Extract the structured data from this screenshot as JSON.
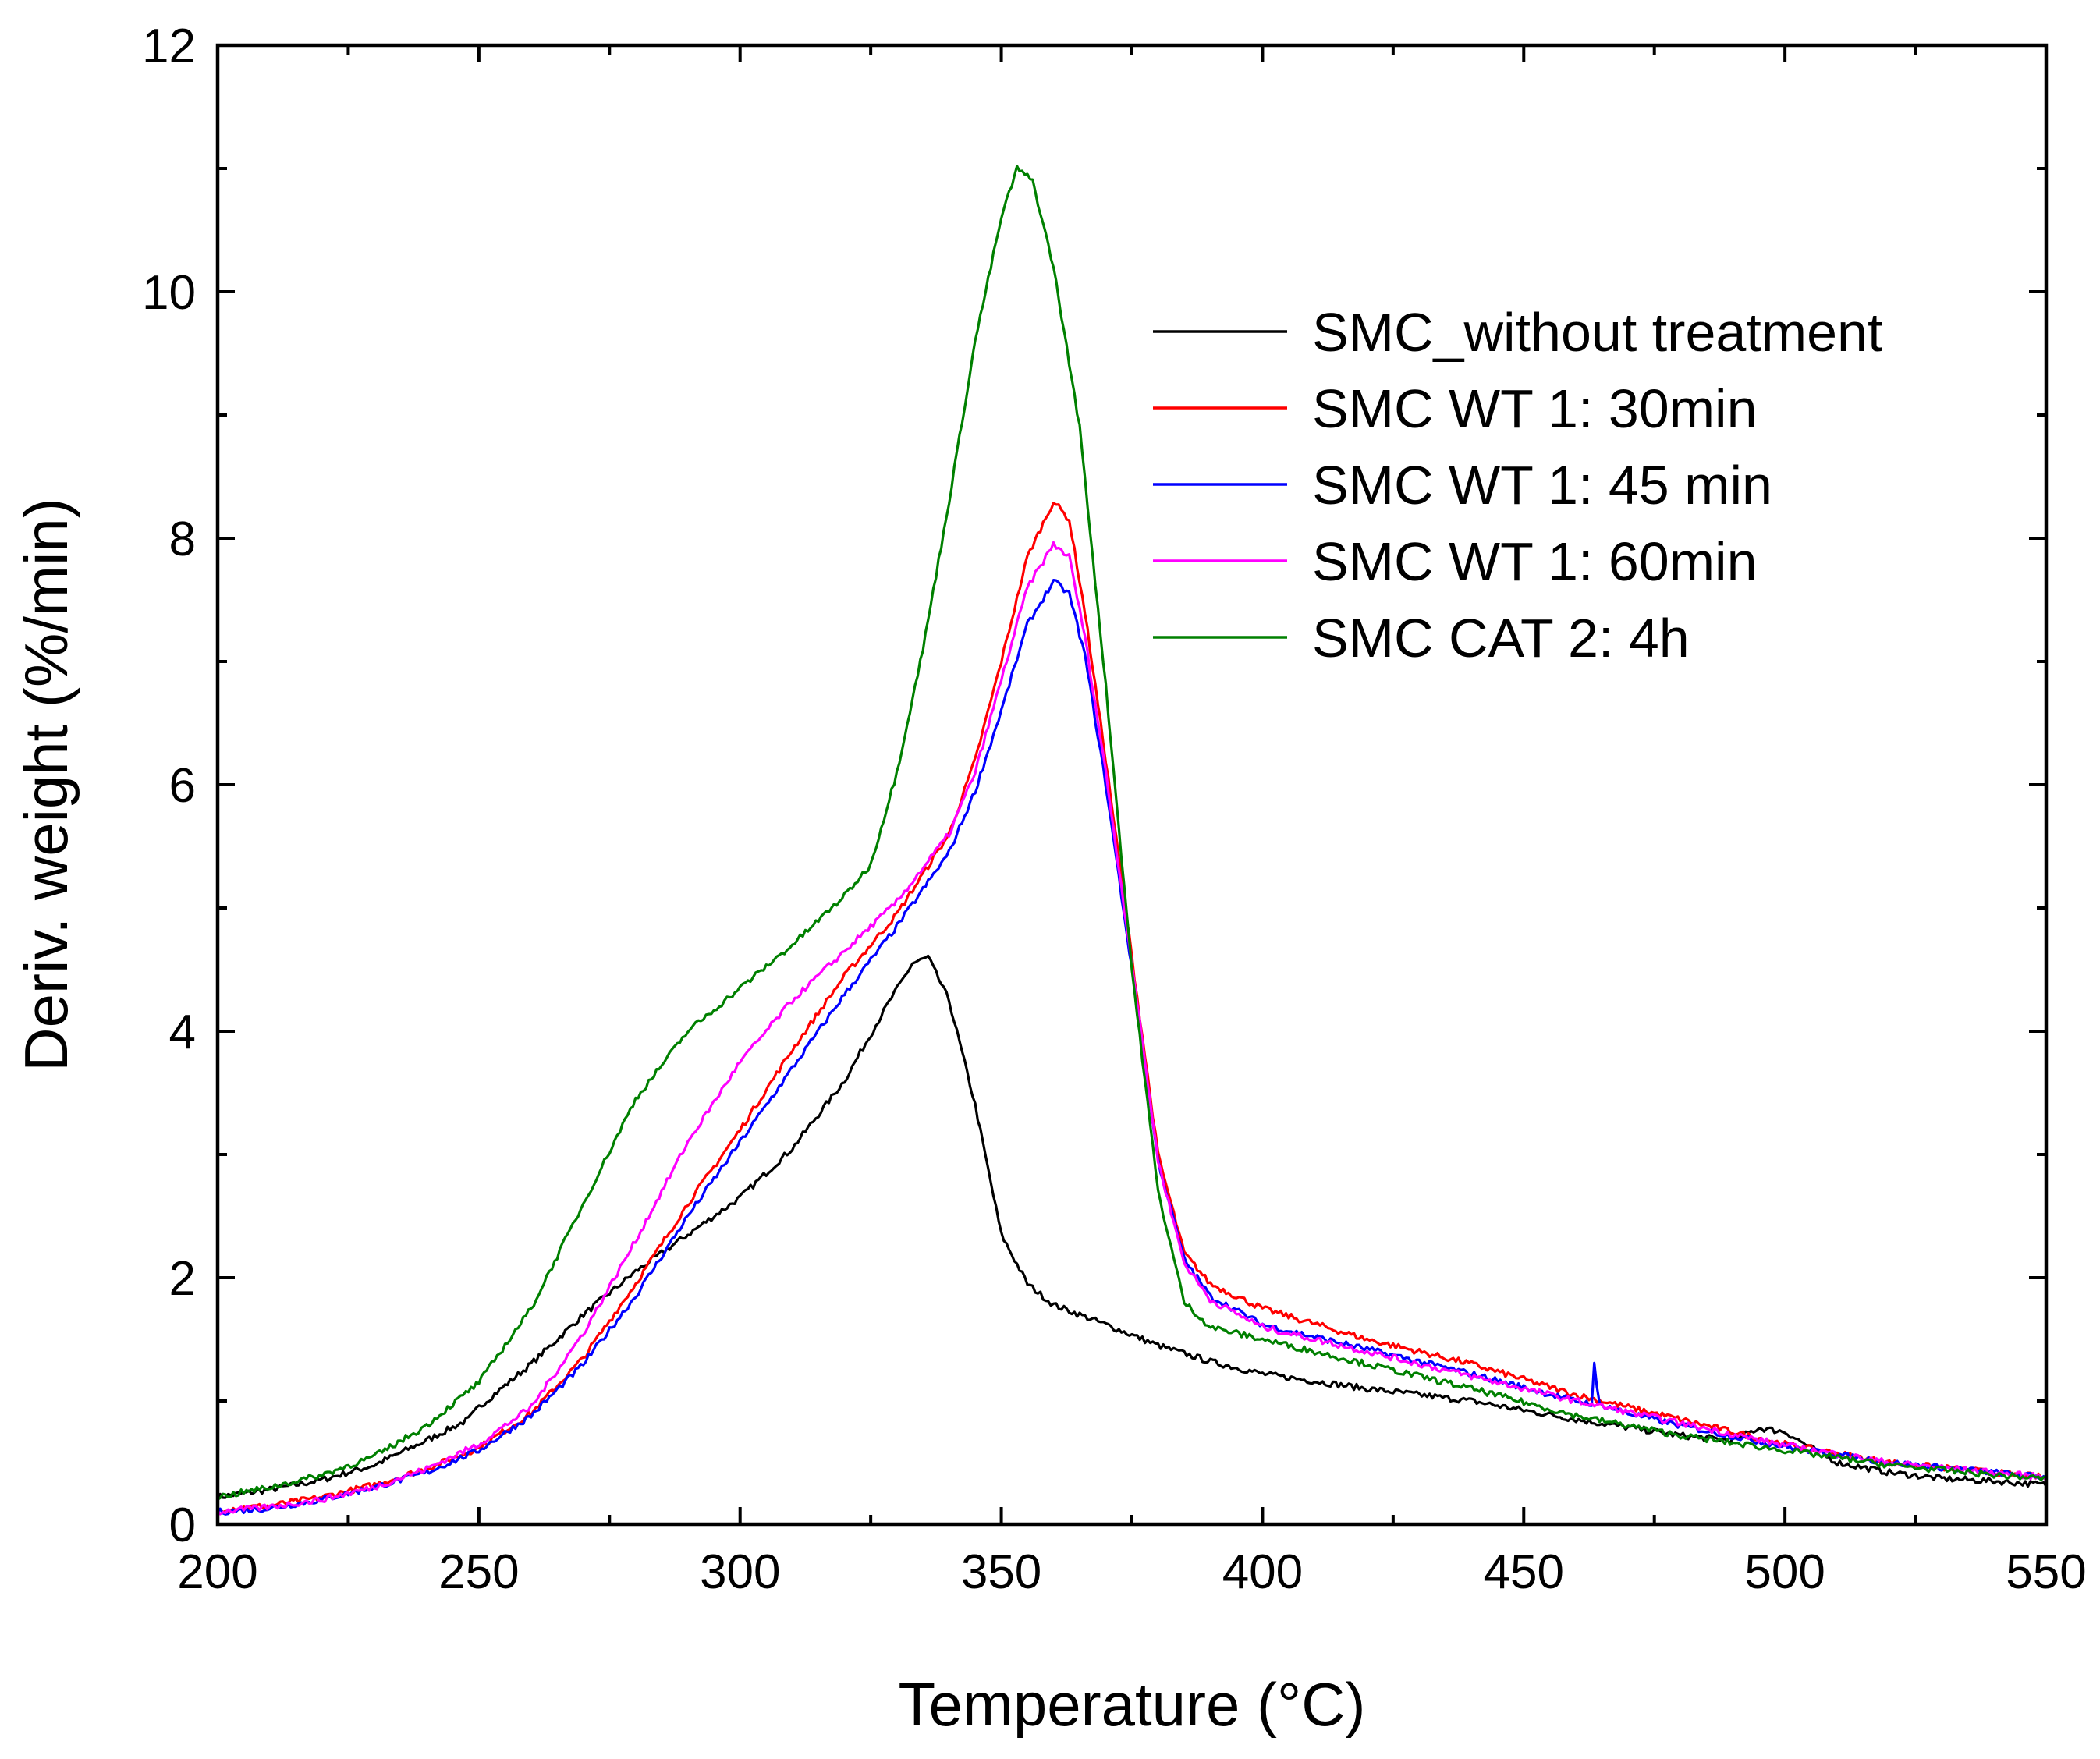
{
  "chart_data": {
    "type": "line",
    "title": "",
    "xlabel": "Temperature (°C)",
    "ylabel": "Deriv. weight (%/min)",
    "xlim": [
      200,
      550
    ],
    "ylim": [
      0,
      12
    ],
    "xticks": [
      200,
      250,
      300,
      350,
      400,
      450,
      500,
      550
    ],
    "yticks": [
      0,
      2,
      4,
      6,
      8,
      10,
      12
    ],
    "x_minor_step": 25,
    "y_minor_step": 1,
    "grid": false,
    "legend_position": "top-right",
    "series": [
      {
        "name": "SMC_without treatment",
        "color": "#000000",
        "points": [
          [
            200,
            0.22
          ],
          [
            210,
            0.28
          ],
          [
            220,
            0.36
          ],
          [
            230,
            0.48
          ],
          [
            240,
            0.68
          ],
          [
            248,
            0.85
          ],
          [
            250,
            0.95
          ],
          [
            260,
            1.3
          ],
          [
            270,
            1.7
          ],
          [
            280,
            2.05
          ],
          [
            290,
            2.35
          ],
          [
            300,
            2.65
          ],
          [
            310,
            3.05
          ],
          [
            320,
            3.6
          ],
          [
            328,
            4.2
          ],
          [
            333,
            4.55
          ],
          [
            336,
            4.6
          ],
          [
            340,
            4.25
          ],
          [
            345,
            3.4
          ],
          [
            350,
            2.35
          ],
          [
            355,
            1.95
          ],
          [
            360,
            1.78
          ],
          [
            370,
            1.62
          ],
          [
            380,
            1.45
          ],
          [
            390,
            1.32
          ],
          [
            400,
            1.22
          ],
          [
            420,
            1.1
          ],
          [
            440,
            1.0
          ],
          [
            460,
            0.85
          ],
          [
            480,
            0.72
          ],
          [
            490,
            0.68
          ],
          [
            495,
            0.78
          ],
          [
            500,
            0.75
          ],
          [
            505,
            0.62
          ],
          [
            510,
            0.5
          ],
          [
            520,
            0.42
          ],
          [
            530,
            0.37
          ],
          [
            540,
            0.35
          ],
          [
            550,
            0.32
          ]
        ]
      },
      {
        "name": "SMC WT 1: 30min",
        "color": "#ff0000",
        "points": [
          [
            200,
            0.12
          ],
          [
            210,
            0.15
          ],
          [
            220,
            0.22
          ],
          [
            230,
            0.32
          ],
          [
            240,
            0.45
          ],
          [
            250,
            0.62
          ],
          [
            260,
            0.9
          ],
          [
            270,
            1.35
          ],
          [
            280,
            1.95
          ],
          [
            290,
            2.6
          ],
          [
            300,
            3.2
          ],
          [
            310,
            3.85
          ],
          [
            320,
            4.45
          ],
          [
            330,
            4.95
          ],
          [
            340,
            5.6
          ],
          [
            345,
            6.2
          ],
          [
            350,
            7.0
          ],
          [
            355,
            7.85
          ],
          [
            360,
            8.3
          ],
          [
            363,
            8.15
          ],
          [
            366,
            7.4
          ],
          [
            370,
            6.2
          ],
          [
            375,
            4.6
          ],
          [
            380,
            3.0
          ],
          [
            385,
            2.2
          ],
          [
            390,
            1.95
          ],
          [
            400,
            1.75
          ],
          [
            420,
            1.5
          ],
          [
            440,
            1.3
          ],
          [
            460,
            1.05
          ],
          [
            480,
            0.85
          ],
          [
            500,
            0.65
          ],
          [
            520,
            0.5
          ],
          [
            540,
            0.42
          ],
          [
            550,
            0.38
          ]
        ]
      },
      {
        "name": "SMC WT 1: 45 min",
        "color": "#0000ff",
        "points": [
          [
            200,
            0.1
          ],
          [
            210,
            0.13
          ],
          [
            220,
            0.2
          ],
          [
            230,
            0.3
          ],
          [
            240,
            0.42
          ],
          [
            250,
            0.6
          ],
          [
            260,
            0.88
          ],
          [
            270,
            1.3
          ],
          [
            280,
            1.85
          ],
          [
            290,
            2.5
          ],
          [
            300,
            3.1
          ],
          [
            310,
            3.7
          ],
          [
            320,
            4.3
          ],
          [
            330,
            4.85
          ],
          [
            340,
            5.45
          ],
          [
            345,
            5.95
          ],
          [
            350,
            6.6
          ],
          [
            355,
            7.3
          ],
          [
            360,
            7.65
          ],
          [
            363,
            7.55
          ],
          [
            366,
            7.05
          ],
          [
            370,
            6.0
          ],
          [
            375,
            4.5
          ],
          [
            380,
            2.95
          ],
          [
            385,
            2.15
          ],
          [
            390,
            1.85
          ],
          [
            400,
            1.62
          ],
          [
            420,
            1.42
          ],
          [
            440,
            1.22
          ],
          [
            460,
            1.0
          ],
          [
            463,
            0.98
          ],
          [
            463.6,
            1.35
          ],
          [
            464.2,
            0.98
          ],
          [
            470,
            0.9
          ],
          [
            480,
            0.8
          ],
          [
            500,
            0.63
          ],
          [
            520,
            0.5
          ],
          [
            540,
            0.42
          ],
          [
            550,
            0.38
          ]
        ]
      },
      {
        "name": "SMC WT 1: 60min",
        "color": "#ff00ff",
        "points": [
          [
            200,
            0.1
          ],
          [
            210,
            0.14
          ],
          [
            220,
            0.2
          ],
          [
            230,
            0.3
          ],
          [
            240,
            0.45
          ],
          [
            250,
            0.65
          ],
          [
            260,
            0.95
          ],
          [
            270,
            1.55
          ],
          [
            280,
            2.3
          ],
          [
            290,
            3.1
          ],
          [
            300,
            3.75
          ],
          [
            310,
            4.25
          ],
          [
            320,
            4.65
          ],
          [
            330,
            5.05
          ],
          [
            340,
            5.6
          ],
          [
            345,
            6.1
          ],
          [
            350,
            6.85
          ],
          [
            355,
            7.6
          ],
          [
            360,
            7.95
          ],
          [
            363,
            7.85
          ],
          [
            366,
            7.2
          ],
          [
            370,
            6.1
          ],
          [
            375,
            4.55
          ],
          [
            380,
            2.95
          ],
          [
            385,
            2.12
          ],
          [
            390,
            1.82
          ],
          [
            400,
            1.6
          ],
          [
            420,
            1.4
          ],
          [
            440,
            1.2
          ],
          [
            460,
            1.0
          ],
          [
            480,
            0.82
          ],
          [
            500,
            0.64
          ],
          [
            520,
            0.5
          ],
          [
            540,
            0.42
          ],
          [
            550,
            0.38
          ]
        ]
      },
      {
        "name": "SMC CAT 2: 4h",
        "color": "#008000",
        "points": [
          [
            200,
            0.22
          ],
          [
            210,
            0.3
          ],
          [
            220,
            0.4
          ],
          [
            230,
            0.55
          ],
          [
            240,
            0.8
          ],
          [
            250,
            1.15
          ],
          [
            260,
            1.75
          ],
          [
            270,
            2.6
          ],
          [
            280,
            3.45
          ],
          [
            290,
            4.0
          ],
          [
            300,
            4.35
          ],
          [
            310,
            4.7
          ],
          [
            320,
            5.1
          ],
          [
            325,
            5.35
          ],
          [
            330,
            6.1
          ],
          [
            335,
            7.1
          ],
          [
            340,
            8.3
          ],
          [
            345,
            9.6
          ],
          [
            350,
            10.6
          ],
          [
            353,
            11.0
          ],
          [
            356,
            10.9
          ],
          [
            360,
            10.2
          ],
          [
            365,
            8.9
          ],
          [
            370,
            6.8
          ],
          [
            375,
            4.5
          ],
          [
            380,
            2.7
          ],
          [
            385,
            1.8
          ],
          [
            390,
            1.6
          ],
          [
            400,
            1.5
          ],
          [
            420,
            1.3
          ],
          [
            440,
            1.1
          ],
          [
            460,
            0.88
          ],
          [
            480,
            0.72
          ],
          [
            500,
            0.6
          ],
          [
            520,
            0.48
          ],
          [
            540,
            0.4
          ],
          [
            550,
            0.37
          ]
        ]
      }
    ]
  }
}
